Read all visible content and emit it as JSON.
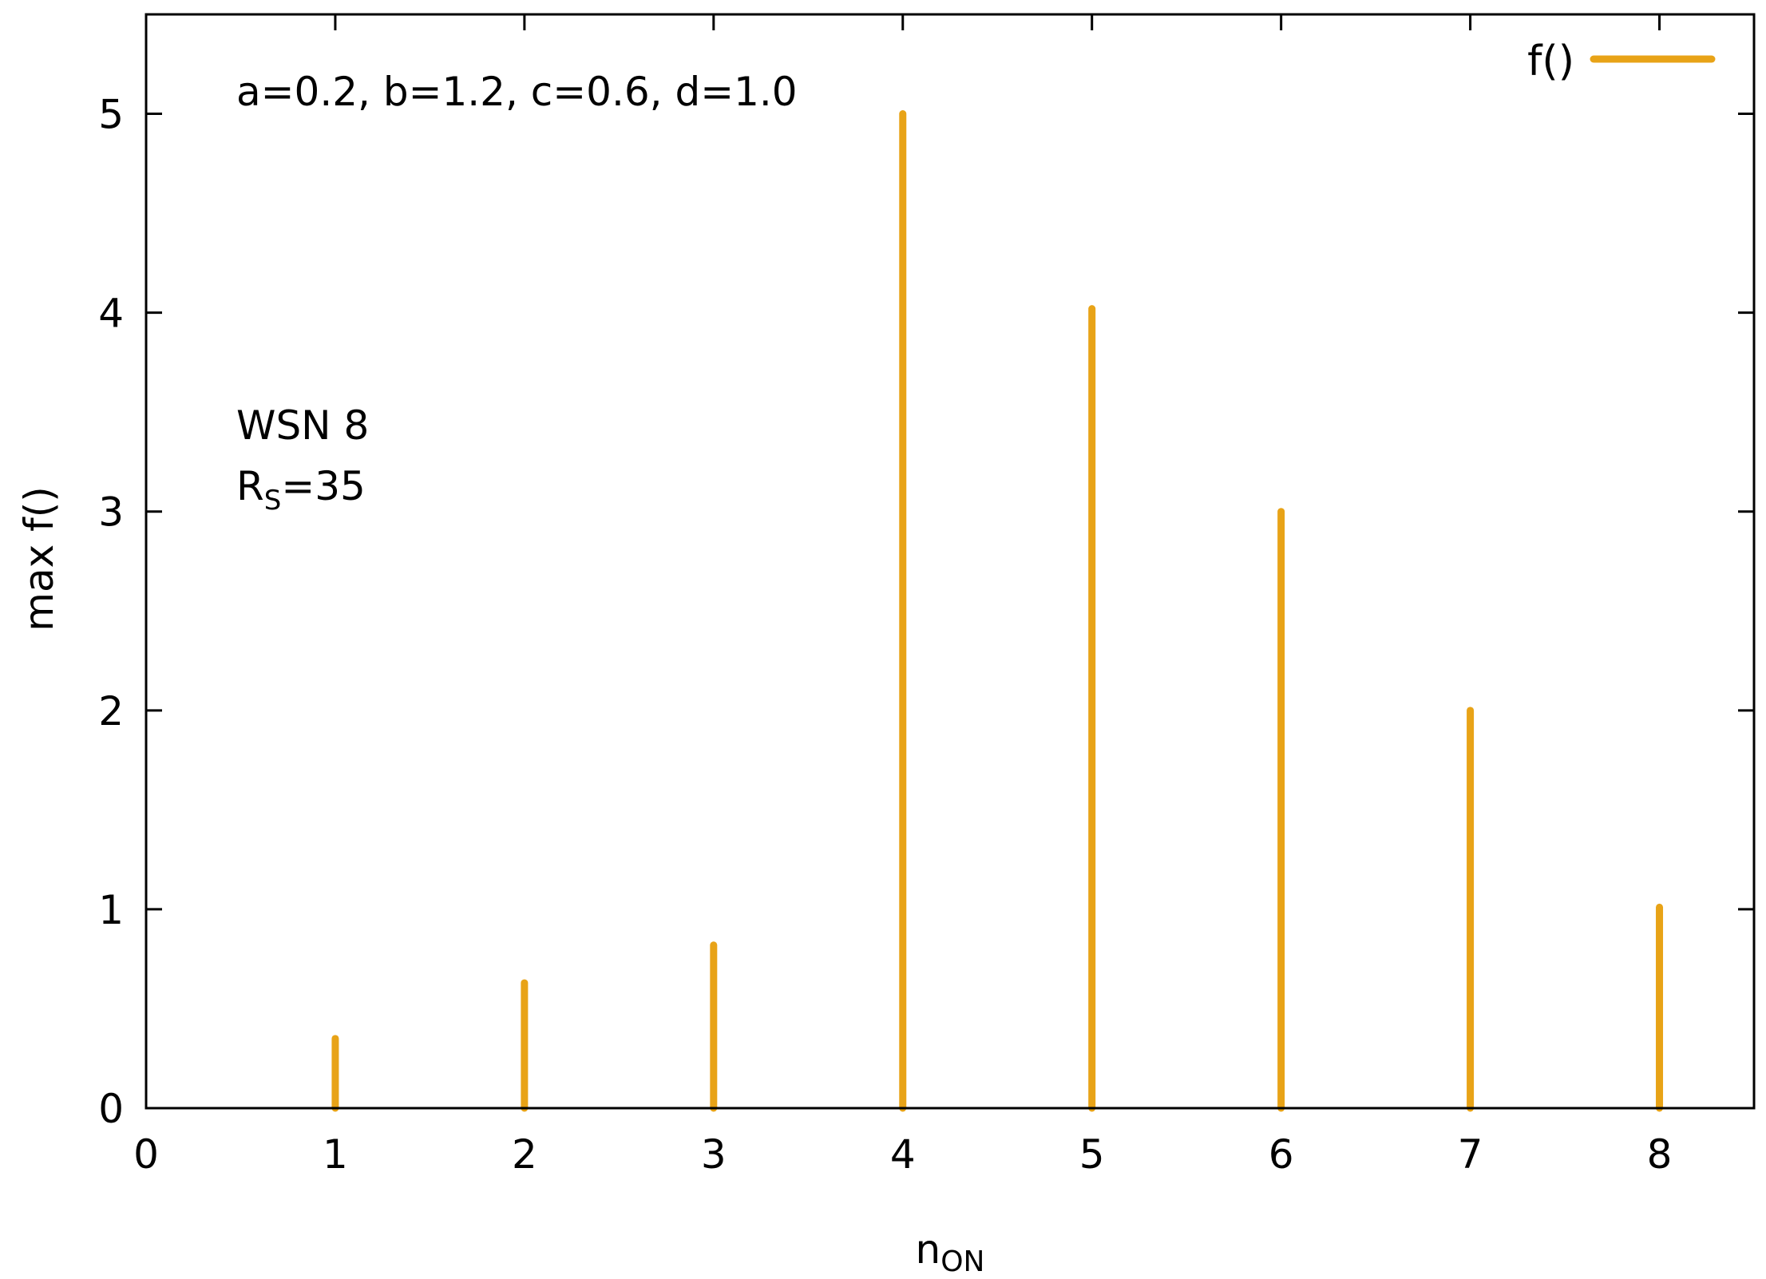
{
  "chart_data": {
    "type": "bar",
    "style": "impulses",
    "x": [
      1,
      2,
      3,
      4,
      5,
      6,
      7,
      8
    ],
    "values": [
      0.35,
      0.63,
      0.82,
      5.0,
      4.02,
      3.0,
      2.0,
      1.01
    ],
    "series": [
      {
        "name": "f()",
        "color": "#e8a317",
        "x": [
          1,
          2,
          3,
          4,
          5,
          6,
          7,
          8
        ],
        "values": [
          0.35,
          0.63,
          0.82,
          5.0,
          4.02,
          3.0,
          2.0,
          1.01
        ]
      }
    ],
    "xlabel": "n",
    "xlabel_subscript": "ON",
    "ylabel": "max f()",
    "xlim": [
      0,
      8.5
    ],
    "ylim": [
      0,
      5.5
    ],
    "xticks": [
      0,
      1,
      2,
      3,
      4,
      5,
      6,
      7,
      8
    ],
    "yticks": [
      0,
      1,
      2,
      3,
      4,
      5
    ],
    "grid": false,
    "legend_position": "top-right",
    "annotations": {
      "params": "a=0.2, b=1.2, c=0.6, d=1.0",
      "network": "WSN 8",
      "radius_symbol": "R",
      "radius_subscript": "S",
      "radius_value": "=35"
    },
    "colors": {
      "line": "#e8a317",
      "axis": "#000000",
      "background": "#ffffff"
    }
  }
}
